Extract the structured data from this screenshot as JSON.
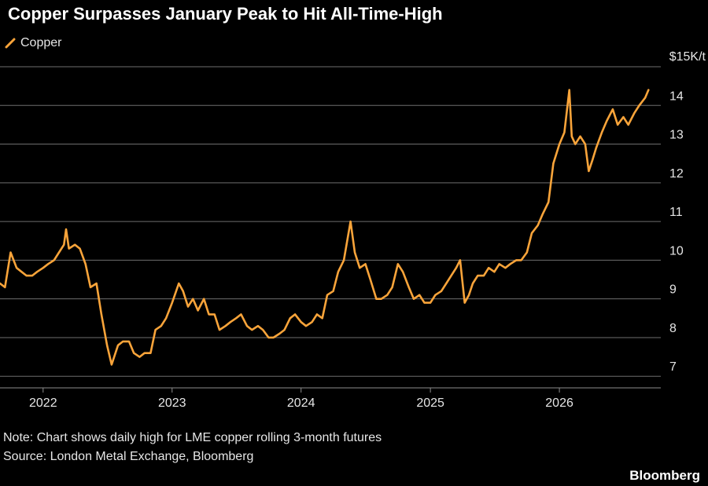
{
  "title": "Copper Surpasses January Peak to Hit All-Time-High",
  "note": "Note: Chart shows daily high for LME copper rolling 3-month futures",
  "source": "Source: London Metal Exchange, Bloomberg",
  "brand": "Bloomberg",
  "colors": {
    "background": "#000000",
    "line": "#f9a43a",
    "grid": "#6e6e6e",
    "text": "#e6e6e6"
  },
  "chart_data": {
    "type": "line",
    "legend": {
      "position": "top-left",
      "entries": [
        "Copper"
      ]
    },
    "y_unit_label": "$15K/t",
    "ylim": [
      6.7,
      15
    ],
    "yticks": [
      7,
      8,
      9,
      10,
      11,
      12,
      13,
      14
    ],
    "ytick_labels": [
      "7",
      "8",
      "9",
      "10",
      "11",
      "12",
      "13",
      "14"
    ],
    "xlim": [
      "2021-09-01",
      "2026-10-15"
    ],
    "xticks": [
      "2022-01-01",
      "2023-01-01",
      "2024-01-01",
      "2025-01-01",
      "2026-01-01"
    ],
    "xtick_labels": [
      "2022",
      "2023",
      "2024",
      "2025",
      "2026"
    ],
    "grid": true,
    "series": [
      {
        "name": "Copper",
        "x": [
          "2021-09-01",
          "2021-09-15",
          "2021-10-01",
          "2021-10-18",
          "2021-11-01",
          "2021-11-15",
          "2021-12-01",
          "2021-12-15",
          "2022-01-01",
          "2022-01-15",
          "2022-02-01",
          "2022-02-15",
          "2022-03-01",
          "2022-03-07",
          "2022-03-15",
          "2022-04-01",
          "2022-04-15",
          "2022-05-01",
          "2022-05-15",
          "2022-06-01",
          "2022-06-15",
          "2022-07-01",
          "2022-07-14",
          "2022-08-01",
          "2022-08-15",
          "2022-09-01",
          "2022-09-15",
          "2022-10-01",
          "2022-10-15",
          "2022-11-01",
          "2022-11-15",
          "2022-12-01",
          "2022-12-15",
          "2023-01-01",
          "2023-01-20",
          "2023-02-01",
          "2023-02-15",
          "2023-03-01",
          "2023-03-15",
          "2023-04-01",
          "2023-04-15",
          "2023-05-01",
          "2023-05-15",
          "2023-06-01",
          "2023-06-15",
          "2023-07-01",
          "2023-07-15",
          "2023-08-01",
          "2023-08-15",
          "2023-09-01",
          "2023-09-15",
          "2023-10-01",
          "2023-10-15",
          "2023-11-01",
          "2023-11-15",
          "2023-12-01",
          "2023-12-15",
          "2024-01-01",
          "2024-01-15",
          "2024-02-01",
          "2024-02-15",
          "2024-03-01",
          "2024-03-15",
          "2024-04-01",
          "2024-04-15",
          "2024-05-01",
          "2024-05-20",
          "2024-06-01",
          "2024-06-15",
          "2024-07-01",
          "2024-07-15",
          "2024-08-01",
          "2024-08-15",
          "2024-09-01",
          "2024-09-15",
          "2024-10-01",
          "2024-10-15",
          "2024-11-01",
          "2024-11-15",
          "2024-12-01",
          "2024-12-15",
          "2025-01-01",
          "2025-01-15",
          "2025-02-01",
          "2025-02-15",
          "2025-03-01",
          "2025-03-15",
          "2025-03-26",
          "2025-04-08",
          "2025-04-20",
          "2025-05-01",
          "2025-05-15",
          "2025-06-01",
          "2025-06-15",
          "2025-07-01",
          "2025-07-15",
          "2025-08-01",
          "2025-08-15",
          "2025-09-01",
          "2025-09-15",
          "2025-10-01",
          "2025-10-15",
          "2025-11-01",
          "2025-11-15",
          "2025-12-01",
          "2025-12-15",
          "2026-01-01",
          "2026-01-15",
          "2026-01-29",
          "2026-02-05",
          "2026-02-15",
          "2026-03-01",
          "2026-03-15",
          "2026-03-25",
          "2026-04-05",
          "2026-04-15",
          "2026-05-01",
          "2026-05-15",
          "2026-06-01",
          "2026-06-15",
          "2026-07-01",
          "2026-07-15",
          "2026-08-01",
          "2026-08-15",
          "2026-09-01",
          "2026-09-10"
        ],
        "values": [
          9.4,
          9.3,
          10.2,
          9.8,
          9.7,
          9.6,
          9.6,
          9.7,
          9.8,
          9.9,
          10.0,
          10.2,
          10.4,
          10.8,
          10.3,
          10.4,
          10.3,
          9.9,
          9.3,
          9.4,
          8.6,
          7.8,
          7.3,
          7.8,
          7.9,
          7.9,
          7.6,
          7.5,
          7.6,
          7.6,
          8.2,
          8.3,
          8.5,
          8.9,
          9.4,
          9.2,
          8.8,
          9.0,
          8.7,
          9.0,
          8.6,
          8.6,
          8.2,
          8.3,
          8.4,
          8.5,
          8.6,
          8.3,
          8.2,
          8.3,
          8.2,
          8.0,
          8.0,
          8.1,
          8.2,
          8.5,
          8.6,
          8.4,
          8.3,
          8.4,
          8.6,
          8.5,
          9.1,
          9.2,
          9.7,
          10.0,
          11.0,
          10.2,
          9.8,
          9.9,
          9.5,
          9.0,
          9.0,
          9.1,
          9.3,
          9.9,
          9.7,
          9.3,
          9.0,
          9.1,
          8.9,
          8.9,
          9.1,
          9.2,
          9.4,
          9.6,
          9.8,
          10.0,
          8.9,
          9.1,
          9.4,
          9.6,
          9.6,
          9.8,
          9.7,
          9.9,
          9.8,
          9.9,
          10.0,
          10.0,
          10.2,
          10.7,
          10.9,
          11.2,
          11.5,
          12.5,
          13.0,
          13.3,
          14.4,
          13.2,
          13.0,
          13.2,
          13.0,
          12.3,
          12.6,
          12.9,
          13.3,
          13.6,
          13.9,
          13.5,
          13.7,
          13.5,
          13.8,
          14.0,
          14.2,
          14.4
        ]
      }
    ]
  }
}
